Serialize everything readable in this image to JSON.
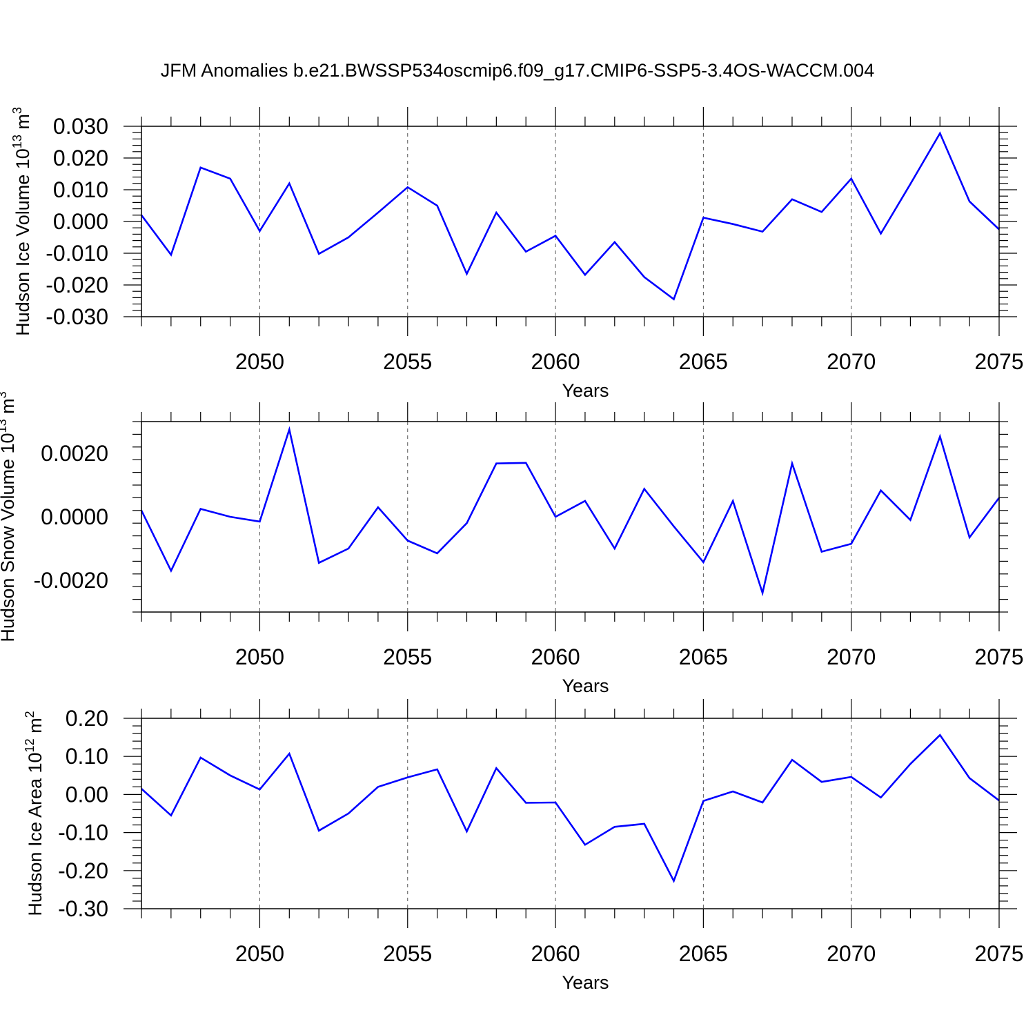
{
  "chart_data": [
    {
      "type": "line",
      "title": "JFM Anomalies b.e21.BWSSP534oscmip6.f09_g17.CMIP6-SSP5-3.4OS-WACCM.004",
      "ylabel_main": "Hudson Ice Volume 10",
      "ylabel_exp": "13",
      "ylabel_unit": "m",
      "ylabel_unit_exp": "3",
      "xlabel": "Years",
      "xlim": [
        2046,
        2075
      ],
      "ylim": [
        -0.03,
        0.03
      ],
      "yticks": [
        -0.03,
        -0.02,
        -0.01,
        0.0,
        0.01,
        0.02,
        0.03
      ],
      "ytick_labels": [
        "-0.030",
        "-0.020",
        "-0.010",
        "0.000",
        "0.010",
        "0.020",
        "0.030"
      ],
      "xticks": [
        2050,
        2055,
        2060,
        2065,
        2070,
        2075
      ],
      "xtick_labels": [
        "2050",
        "2055",
        "2060",
        "2065",
        "2070",
        "2075"
      ],
      "x": [
        2046,
        2047,
        2048,
        2049,
        2050,
        2051,
        2052,
        2053,
        2054,
        2055,
        2056,
        2057,
        2058,
        2059,
        2060,
        2061,
        2062,
        2063,
        2064,
        2065,
        2066,
        2067,
        2068,
        2069,
        2070,
        2071,
        2072,
        2073,
        2074,
        2075
      ],
      "values": [
        0.002,
        -0.0105,
        0.017,
        0.0135,
        -0.003,
        0.012,
        -0.0102,
        -0.005,
        0.0028,
        0.0108,
        0.005,
        -0.0165,
        0.0028,
        -0.0095,
        -0.0045,
        -0.0168,
        -0.0065,
        -0.0175,
        -0.0245,
        0.0012,
        -0.0008,
        -0.0032,
        0.007,
        0.003,
        0.0135,
        -0.0038,
        0.0118,
        0.0278,
        0.0063,
        -0.0025
      ],
      "series_color": "#0000ff"
    },
    {
      "type": "line",
      "ylabel_main": "Hudson Snow Volume 10",
      "ylabel_exp": "13",
      "ylabel_unit": "m",
      "ylabel_unit_exp": "3",
      "xlabel": "Years",
      "xlim": [
        2046,
        2075
      ],
      "ylim": [
        -0.003,
        0.003
      ],
      "yticks": [
        -0.002,
        0.0,
        0.002
      ],
      "ytick_labels": [
        "-0.0020",
        "0.0000",
        "0.0020"
      ],
      "xticks": [
        2050,
        2055,
        2060,
        2065,
        2070,
        2075
      ],
      "xtick_labels": [
        "2050",
        "2055",
        "2060",
        "2065",
        "2070",
        "2075"
      ],
      "x": [
        2046,
        2047,
        2048,
        2049,
        2050,
        2051,
        2052,
        2053,
        2054,
        2055,
        2056,
        2057,
        2058,
        2059,
        2060,
        2061,
        2062,
        2063,
        2064,
        2065,
        2066,
        2067,
        2068,
        2069,
        2070,
        2071,
        2072,
        2073,
        2074,
        2075
      ],
      "values": [
        0.0002,
        -0.0017,
        0.00025,
        0.0,
        -0.00015,
        0.00275,
        -0.00145,
        -0.001,
        0.0003,
        -0.00075,
        -0.00115,
        -0.0002,
        0.00168,
        0.0017,
        0.0,
        0.0005,
        -0.001,
        0.00088,
        -0.0003,
        -0.00143,
        0.0005,
        -0.0024,
        0.00168,
        -0.0011,
        -0.00085,
        0.00083,
        -0.0001,
        0.00253,
        -0.00065,
        0.0006
      ],
      "series_color": "#0000ff"
    },
    {
      "type": "line",
      "ylabel_main": "Hudson Ice Area 10",
      "ylabel_exp": "12",
      "ylabel_unit": "m",
      "ylabel_unit_exp": "2",
      "xlabel": "Years",
      "xlim": [
        2046,
        2075
      ],
      "ylim": [
        -0.3,
        0.2
      ],
      "yticks": [
        -0.3,
        -0.2,
        -0.1,
        0.0,
        0.1,
        0.2
      ],
      "ytick_labels": [
        "-0.30",
        "-0.20",
        "-0.10",
        "0.00",
        "0.10",
        "0.20"
      ],
      "xticks": [
        2050,
        2055,
        2060,
        2065,
        2070,
        2075
      ],
      "xtick_labels": [
        "2050",
        "2055",
        "2060",
        "2065",
        "2070",
        "2075"
      ],
      "x": [
        2046,
        2047,
        2048,
        2049,
        2050,
        2051,
        2052,
        2053,
        2054,
        2055,
        2056,
        2057,
        2058,
        2059,
        2060,
        2061,
        2062,
        2063,
        2064,
        2065,
        2066,
        2067,
        2068,
        2069,
        2070,
        2071,
        2072,
        2073,
        2074,
        2075
      ],
      "values": [
        0.015,
        -0.055,
        0.097,
        0.05,
        0.013,
        0.107,
        -0.095,
        -0.05,
        0.02,
        0.045,
        0.066,
        -0.097,
        0.069,
        -0.022,
        -0.021,
        -0.132,
        -0.085,
        -0.077,
        -0.227,
        -0.017,
        0.008,
        -0.021,
        0.091,
        0.033,
        0.046,
        -0.008,
        0.08,
        0.156,
        0.043,
        -0.016
      ],
      "series_color": "#0000ff"
    }
  ]
}
